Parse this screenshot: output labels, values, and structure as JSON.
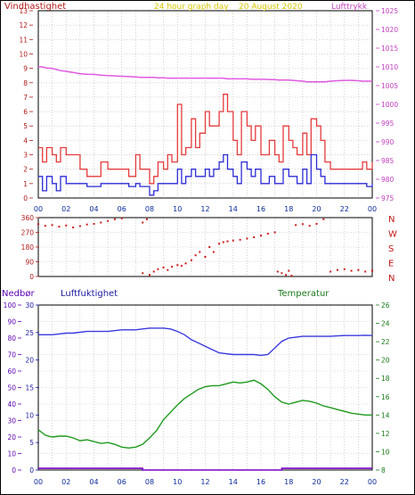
{
  "top_panel": {
    "left_title": "Vindhastighet",
    "center_title": "24 hour graph day",
    "date_text": "20 August 2020",
    "right_title": "Lufttrykk"
  },
  "colors": {
    "gust": "#e43b3b",
    "wind": "#2b2bd6",
    "pressure": "#e05ae0",
    "direction": "#cc1a1a",
    "humidity": "#3a3adf",
    "temperature": "#1e9a1e",
    "rain": "#7a00c8",
    "grid": "#b9b9b9"
  },
  "chart_data": [
    {
      "type": "line",
      "id": "wind",
      "x_ticks": [
        "00",
        "02",
        "04",
        "06",
        "08",
        "10",
        "12",
        "14",
        "16",
        "18",
        "20",
        "22",
        "00"
      ],
      "left_axis": {
        "label": "Vindhastighet",
        "ylim": [
          0,
          13
        ],
        "ticks": [
          0,
          1,
          2,
          3,
          4,
          5,
          6,
          7,
          8,
          9,
          10,
          11,
          12,
          13
        ]
      },
      "right_axis": {
        "label": "Lufttrykk",
        "ylim": [
          975,
          1025
        ],
        "ticks": [
          975,
          980,
          985,
          990,
          995,
          1000,
          1005,
          1010,
          1015,
          1020,
          1025
        ]
      },
      "x": [
        0,
        0.3,
        0.6,
        1,
        1.3,
        1.6,
        2,
        2.5,
        3,
        3.5,
        4,
        4.5,
        5,
        5.5,
        6,
        6.5,
        7,
        7.3,
        7.6,
        8,
        8.3,
        8.6,
        9,
        9.3,
        9.6,
        10,
        10.3,
        10.6,
        11,
        11.3,
        11.6,
        12,
        12.3,
        12.6,
        13,
        13.3,
        13.6,
        14,
        14.3,
        14.6,
        15,
        15.3,
        15.6,
        16,
        16.3,
        16.6,
        17,
        17.3,
        17.6,
        18,
        18.3,
        18.6,
        19,
        19.3,
        19.6,
        20,
        20.3,
        20.6,
        21,
        21.5,
        22,
        22.5,
        23,
        23.3,
        23.6,
        24
      ],
      "series": [
        {
          "name": "gust",
          "axis": "left",
          "values": [
            3.5,
            2.5,
            3.5,
            3,
            2.5,
            3.5,
            3,
            3,
            2,
            1.5,
            1.5,
            2.5,
            2,
            2,
            2,
            1.5,
            3,
            2,
            2,
            1,
            1.5,
            2.5,
            2,
            3,
            2.5,
            6.5,
            3,
            3.5,
            5.5,
            3.5,
            4.5,
            6,
            5,
            5,
            6,
            7.2,
            6,
            4,
            3,
            6,
            5,
            4,
            5,
            3,
            3,
            4,
            3,
            2.5,
            5,
            4,
            3.5,
            3,
            4.5,
            3,
            5.5,
            5,
            4,
            2.5,
            2,
            2,
            2,
            2,
            2,
            2.5,
            2,
            2.5
          ]
        },
        {
          "name": "wind",
          "axis": "left",
          "values": [
            1.5,
            0.5,
            1.5,
            1,
            0.5,
            1.5,
            1,
            1,
            1,
            0.8,
            0.8,
            1,
            1,
            1,
            1,
            0.8,
            1,
            0.8,
            0.8,
            0.2,
            0.5,
            1,
            1,
            1,
            1,
            2,
            1,
            1.5,
            2,
            1.5,
            1.5,
            2,
            1.5,
            2,
            2.5,
            3,
            2,
            1.5,
            1,
            2.5,
            2,
            1.5,
            2,
            1,
            1,
            1.5,
            1,
            1,
            2,
            1.5,
            1.5,
            1,
            2,
            1,
            3,
            2,
            1.5,
            1,
            1,
            1,
            1,
            1,
            1,
            1,
            0.8,
            1
          ]
        },
        {
          "name": "pressure",
          "axis": "right",
          "values": [
            1010,
            1010,
            1009.7,
            1009.6,
            1009.3,
            1009,
            1008.8,
            1008.5,
            1008.2,
            1008,
            1008,
            1007.8,
            1007.7,
            1007.6,
            1007.5,
            1007.4,
            1007.3,
            1007.2,
            1007.2,
            1007.2,
            1007.2,
            1007.1,
            1007.1,
            1007,
            1007,
            1007,
            1007,
            1007,
            1007,
            1007,
            1007,
            1007,
            1007,
            1007,
            1007,
            1007,
            1006.8,
            1006.8,
            1006.8,
            1006.8,
            1006.8,
            1006.7,
            1006.7,
            1006.7,
            1006.7,
            1006.6,
            1006.6,
            1006.5,
            1006.5,
            1006.5,
            1006.4,
            1006.3,
            1006.2,
            1006,
            1006,
            1006,
            1006,
            1006,
            1006.2,
            1006.3,
            1006.4,
            1006.4,
            1006.3,
            1006.2,
            1006.2,
            1006.2
          ]
        }
      ]
    },
    {
      "type": "scatter",
      "id": "direction",
      "x_ticks": [
        "00",
        "02",
        "04",
        "06",
        "08",
        "10",
        "12",
        "14",
        "16",
        "18",
        "20",
        "22",
        "00"
      ],
      "left_axis": {
        "ylim": [
          0,
          360
        ],
        "ticks": [
          0,
          45,
          90,
          135,
          180,
          225,
          270,
          315,
          360
        ]
      },
      "right_labels": [
        "N",
        "W",
        "S",
        "E",
        "N"
      ],
      "series": [
        {
          "name": "direction",
          "points": [
            [
              0,
              320
            ],
            [
              0.5,
              310
            ],
            [
              1,
              315
            ],
            [
              1.5,
              305
            ],
            [
              2,
              312
            ],
            [
              2.5,
              300
            ],
            [
              3,
              308
            ],
            [
              3.5,
              318
            ],
            [
              4,
              322
            ],
            [
              4.5,
              330
            ],
            [
              5,
              340
            ],
            [
              5.5,
              350
            ],
            [
              6,
              355
            ],
            [
              7.5,
              330
            ],
            [
              7.8,
              350
            ],
            [
              7.5,
              20
            ],
            [
              8,
              10
            ],
            [
              8.3,
              30
            ],
            [
              8.6,
              45
            ],
            [
              9,
              55
            ],
            [
              9.3,
              40
            ],
            [
              9.6,
              60
            ],
            [
              10,
              70
            ],
            [
              10.3,
              65
            ],
            [
              10.6,
              80
            ],
            [
              11,
              100
            ],
            [
              11.3,
              130
            ],
            [
              11.6,
              150
            ],
            [
              12,
              120
            ],
            [
              12.3,
              180
            ],
            [
              12.6,
              150
            ],
            [
              13,
              200
            ],
            [
              13.3,
              210
            ],
            [
              13.6,
              215
            ],
            [
              14,
              220
            ],
            [
              14.5,
              225
            ],
            [
              15,
              232
            ],
            [
              15.5,
              240
            ],
            [
              16,
              250
            ],
            [
              16.5,
              262
            ],
            [
              17,
              270
            ],
            [
              17.2,
              30
            ],
            [
              17.5,
              20
            ],
            [
              17.8,
              10
            ],
            [
              18,
              35
            ],
            [
              18.2,
              5
            ],
            [
              18.5,
              315
            ],
            [
              19,
              320
            ],
            [
              19.5,
              310
            ],
            [
              20,
              322
            ],
            [
              20.5,
              350
            ],
            [
              21,
              30
            ],
            [
              21.5,
              40
            ],
            [
              22,
              45
            ],
            [
              22.5,
              35
            ],
            [
              23,
              40
            ],
            [
              23.5,
              30
            ],
            [
              24,
              35
            ]
          ]
        }
      ]
    },
    {
      "type": "line",
      "id": "humidity-temperature",
      "x_ticks": [
        "00",
        "02",
        "04",
        "06",
        "08",
        "10",
        "12",
        "14",
        "16",
        "18",
        "20",
        "22",
        "00"
      ],
      "rain_axis": {
        "label": "Nedbør",
        "ylim": [
          0,
          100
        ],
        "ticks": [
          0,
          10,
          20,
          30,
          40,
          50,
          60,
          70,
          80,
          90,
          100
        ]
      },
      "humidity_axis": {
        "label": "Luftfuktighet",
        "ylim": [
          0,
          30
        ],
        "ticks": [
          0,
          5,
          10,
          15,
          20,
          25,
          30
        ]
      },
      "temperature_axis": {
        "label": "Temperatur",
        "ylim": [
          8,
          26
        ],
        "ticks": [
          8,
          10,
          12,
          14,
          16,
          18,
          20,
          22,
          24,
          26
        ]
      },
      "x": [
        0,
        0.5,
        1,
        1.5,
        2,
        2.5,
        3,
        3.5,
        4,
        4.5,
        5,
        5.5,
        6,
        6.5,
        7,
        7.5,
        8,
        8.5,
        9,
        9.5,
        10,
        10.5,
        11,
        11.5,
        12,
        12.5,
        13,
        13.5,
        14,
        14.5,
        15,
        15.5,
        16,
        16.5,
        17,
        17.5,
        18,
        18.5,
        19,
        19.5,
        20,
        20.5,
        21,
        21.5,
        22,
        22.5,
        23,
        23.5,
        24
      ],
      "series": [
        {
          "name": "humidity",
          "axis": "rain",
          "values": [
            82,
            82,
            82,
            82.5,
            83,
            83,
            83.5,
            84,
            84,
            84,
            84,
            84.5,
            85,
            85,
            85,
            85.5,
            86,
            86,
            86,
            85.5,
            84,
            82,
            79,
            77,
            75,
            73,
            71,
            70.5,
            70,
            70,
            70,
            70,
            69.5,
            70,
            74,
            78,
            80,
            80.5,
            81,
            81,
            81,
            81,
            81,
            81.3,
            81.5,
            81.5,
            81.5,
            81.7,
            81.5
          ]
        },
        {
          "name": "temperature",
          "axis": "temperature",
          "values": [
            12.4,
            11.8,
            11.6,
            11.7,
            11.7,
            11.5,
            11.2,
            11.3,
            11.1,
            10.9,
            11.0,
            10.8,
            10.5,
            10.4,
            10.5,
            10.8,
            11.5,
            12.3,
            13.5,
            14.3,
            15.1,
            15.8,
            16.3,
            16.8,
            17.1,
            17.2,
            17.2,
            17.4,
            17.6,
            17.5,
            17.6,
            17.8,
            17.4,
            16.8,
            16.0,
            15.4,
            15.2,
            15.4,
            15.6,
            15.5,
            15.3,
            15.0,
            14.8,
            14.6,
            14.4,
            14.2,
            14.1,
            14.0,
            14.0
          ]
        },
        {
          "name": "rain",
          "axis": "rain",
          "values": [
            1,
            1,
            1,
            1,
            1,
            1,
            1,
            1,
            1,
            1,
            1,
            1,
            1,
            1,
            1,
            0,
            0,
            0,
            0,
            0,
            0,
            0,
            0,
            0,
            0,
            0,
            0,
            0,
            0,
            0,
            0,
            0,
            0,
            0,
            0,
            1,
            1,
            1,
            1,
            1,
            1,
            1,
            1,
            1,
            1,
            1,
            1,
            1,
            1
          ]
        }
      ]
    }
  ]
}
